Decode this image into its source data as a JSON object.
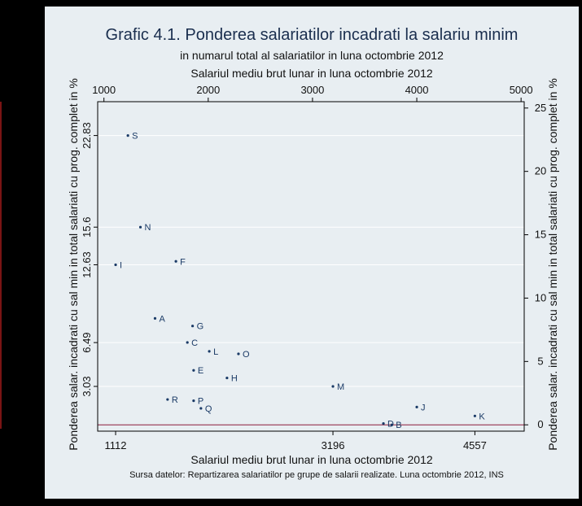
{
  "chart_data": {
    "type": "scatter",
    "title": "Grafic 4.1. Ponderea salariatilor incadrati la salariu minim",
    "subtitle": "in numarul total al salariatilor in luna octombrie 2012",
    "xlabel_top": "Salariul mediu brut lunar in luna octombrie 2012",
    "xlabel_bottom": "Salariul mediu brut lunar in luna octombrie 2012",
    "ylabel_left": "Ponderea salar. incadrati cu sal min in total salariati cu prog. complet in %",
    "ylabel_right": "Ponderea salar. incadrati cu sal min in total salariati cu prog. complet in %",
    "note": "Sursa datelor: Repartizarea salariatilor pe grupe de salarii realizate. Luna octombrie 2012, INS",
    "xlim": [
      940,
      5030
    ],
    "ylim": [
      -0.5,
      25.5
    ],
    "x_ticks_top": [
      1000,
      2000,
      3000,
      4000,
      5000
    ],
    "x_ticks_bottom": [
      1112,
      3196,
      4557
    ],
    "y_ticks_left": [
      3.03,
      6.49,
      12.63,
      15.6,
      22.83
    ],
    "y_ticks_right": [
      0,
      5,
      10,
      15,
      20,
      25
    ],
    "reference_line_y": 0,
    "grid": true,
    "colors": {
      "background": "#e8eef2",
      "frame": "#000000",
      "points": "#1a3a66",
      "reference_line": "#8b1a3a",
      "grid": "#ffffff"
    },
    "points": [
      {
        "label": "S",
        "x": 1230,
        "y": 22.83
      },
      {
        "label": "N",
        "x": 1350,
        "y": 15.6
      },
      {
        "label": "I",
        "x": 1112,
        "y": 12.63
      },
      {
        "label": "F",
        "x": 1690,
        "y": 12.9
      },
      {
        "label": "A",
        "x": 1490,
        "y": 8.4
      },
      {
        "label": "G",
        "x": 1850,
        "y": 7.8
      },
      {
        "label": "C",
        "x": 1800,
        "y": 6.5
      },
      {
        "label": "L",
        "x": 2010,
        "y": 5.8
      },
      {
        "label": "O",
        "x": 2290,
        "y": 5.6
      },
      {
        "label": "E",
        "x": 1860,
        "y": 4.3
      },
      {
        "label": "H",
        "x": 2180,
        "y": 3.7
      },
      {
        "label": "M",
        "x": 3196,
        "y": 3.03
      },
      {
        "label": "R",
        "x": 1610,
        "y": 2.0
      },
      {
        "label": "P",
        "x": 1860,
        "y": 1.9
      },
      {
        "label": "Q",
        "x": 1930,
        "y": 1.3
      },
      {
        "label": "J",
        "x": 4000,
        "y": 1.4
      },
      {
        "label": "D",
        "x": 3680,
        "y": 0.1
      },
      {
        "label": "B",
        "x": 3760,
        "y": 0.0
      },
      {
        "label": "K",
        "x": 4557,
        "y": 0.7
      }
    ]
  }
}
